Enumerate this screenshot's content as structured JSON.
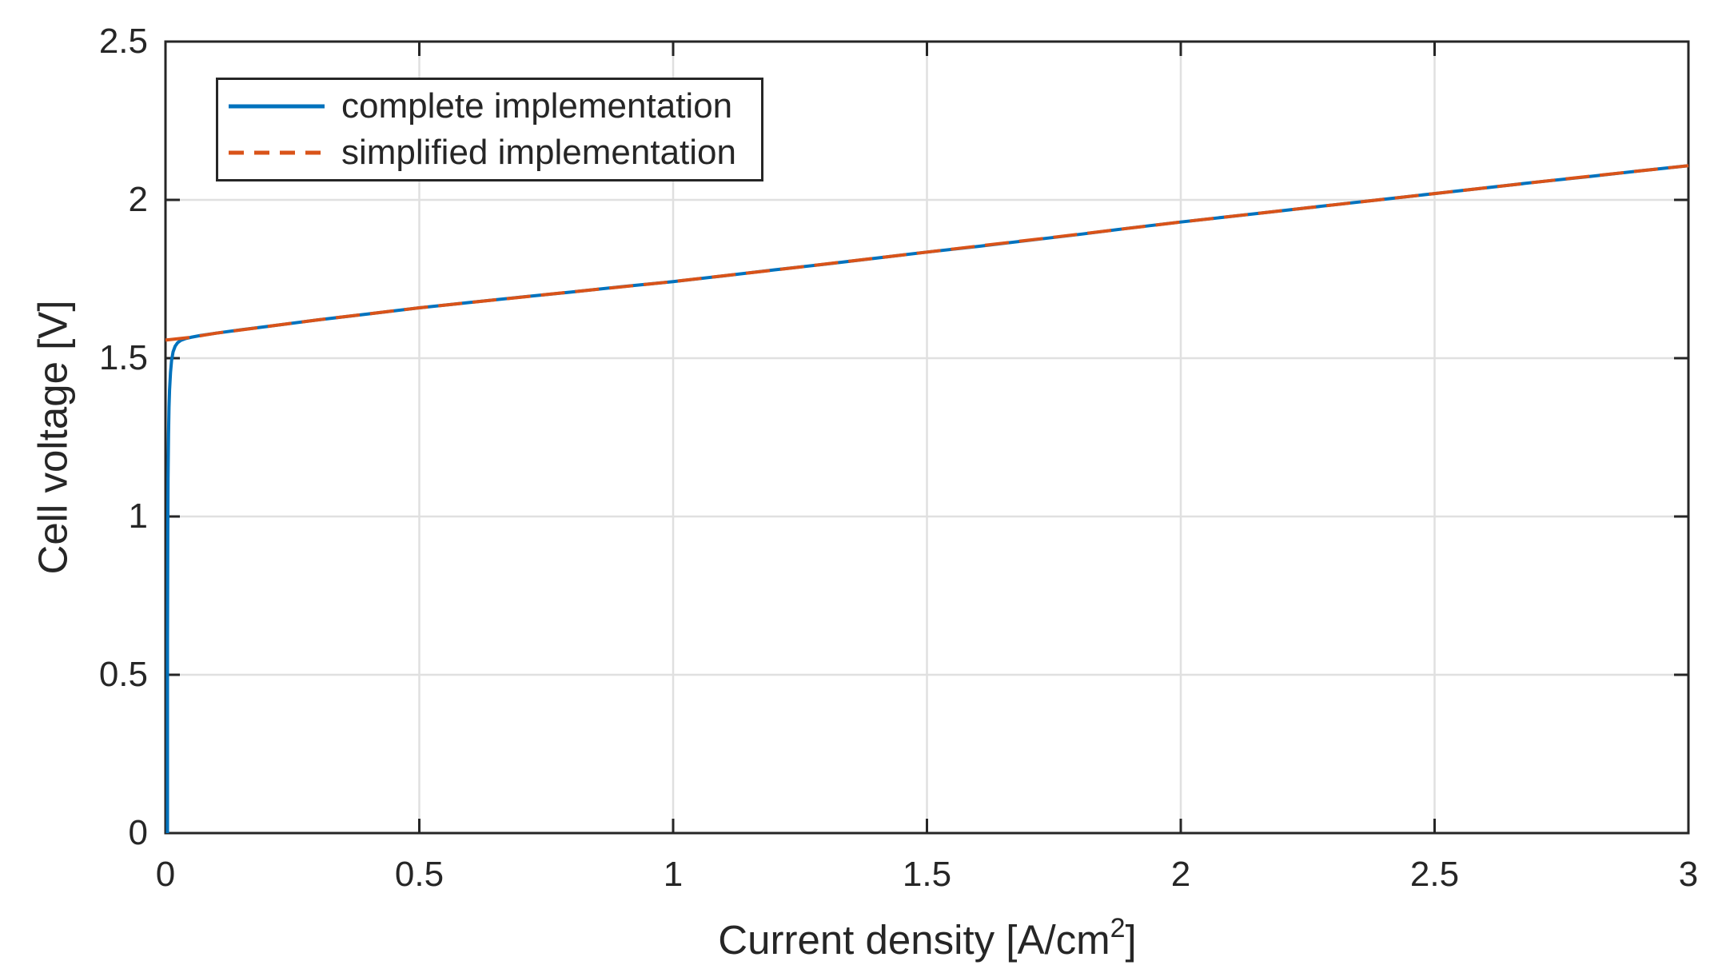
{
  "chart_data": {
    "type": "line",
    "title": "",
    "xlabel_prefix": "Current density [A/cm",
    "xlabel_sup": "2",
    "xlabel_suffix": "]",
    "ylabel": "Cell voltage [V]",
    "xlim": [
      0,
      3
    ],
    "ylim": [
      0,
      2.5
    ],
    "xticks": [
      0,
      0.5,
      1,
      1.5,
      2,
      2.5,
      3
    ],
    "xtick_labels": [
      "0",
      "0.5",
      "1",
      "1.5",
      "2",
      "2.5",
      "3"
    ],
    "yticks": [
      0,
      0.5,
      1,
      1.5,
      2,
      2.5
    ],
    "ytick_labels": [
      "0",
      "0.5",
      "1",
      "1.5",
      "2",
      "2.5"
    ],
    "grid": true,
    "legend_position": "top-left",
    "axis_color": "#262626",
    "grid_color": "#E0E0E0",
    "background_color": "#FFFFFF",
    "series": [
      {
        "name": "complete implementation",
        "color": "#0072BD",
        "style": "solid",
        "points": [
          [
            0.004,
            0
          ],
          [
            0.004,
            0.6
          ],
          [
            0.0045,
            0.95
          ],
          [
            0.005,
            1.12
          ],
          [
            0.006,
            1.26
          ],
          [
            0.007,
            1.345
          ],
          [
            0.008,
            1.4
          ],
          [
            0.01,
            1.455
          ],
          [
            0.012,
            1.492
          ],
          [
            0.015,
            1.52
          ],
          [
            0.019,
            1.538
          ],
          [
            0.024,
            1.549
          ],
          [
            0.03,
            1.556
          ],
          [
            0.04,
            1.562
          ],
          [
            0.05,
            1.566
          ],
          [
            0.07,
            1.572
          ],
          [
            0.1,
            1.579
          ],
          [
            0.15,
            1.59
          ],
          [
            0.2,
            1.6
          ],
          [
            0.3,
            1.621
          ],
          [
            0.4,
            1.64
          ],
          [
            0.5,
            1.659
          ],
          [
            0.6,
            1.676
          ],
          [
            0.7,
            1.693
          ],
          [
            0.8,
            1.709
          ],
          [
            0.9,
            1.726
          ],
          [
            1.0,
            1.742
          ],
          [
            1.1,
            1.76
          ],
          [
            1.2,
            1.779
          ],
          [
            1.3,
            1.797
          ],
          [
            1.4,
            1.816
          ],
          [
            1.5,
            1.835
          ],
          [
            1.6,
            1.853
          ],
          [
            1.7,
            1.872
          ],
          [
            1.8,
            1.891
          ],
          [
            1.9,
            1.911
          ],
          [
            2.0,
            1.93
          ],
          [
            2.1,
            1.948
          ],
          [
            2.2,
            1.966
          ],
          [
            2.3,
            1.984
          ],
          [
            2.4,
            2.002
          ],
          [
            2.5,
            2.02
          ],
          [
            2.6,
            2.038
          ],
          [
            2.7,
            2.056
          ],
          [
            2.8,
            2.073
          ],
          [
            2.9,
            2.091
          ],
          [
            3.0,
            2.108
          ]
        ]
      },
      {
        "name": "simplified implementation",
        "color": "#D95319",
        "style": "dashed",
        "points": [
          [
            0,
            1.557
          ],
          [
            0.05,
            1.566
          ],
          [
            0.1,
            1.579
          ],
          [
            0.2,
            1.6
          ],
          [
            0.3,
            1.621
          ],
          [
            0.5,
            1.659
          ],
          [
            0.75,
            1.701
          ],
          [
            1.0,
            1.742
          ],
          [
            1.25,
            1.788
          ],
          [
            1.5,
            1.835
          ],
          [
            1.75,
            1.882
          ],
          [
            2.0,
            1.93
          ],
          [
            2.25,
            1.975
          ],
          [
            2.5,
            2.02
          ],
          [
            2.75,
            2.065
          ],
          [
            3.0,
            2.108
          ]
        ]
      }
    ]
  }
}
